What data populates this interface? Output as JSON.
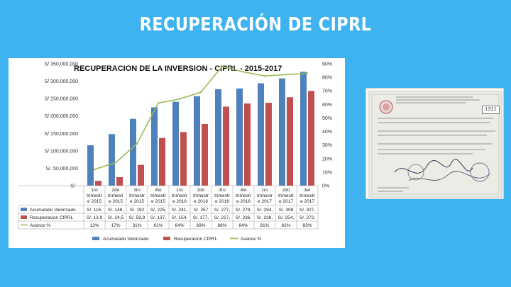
{
  "slide": {
    "title": "RECUPERACIÓN DE CIPRL"
  },
  "colors": {
    "background": "#3fb2f0",
    "accumulated": "#4f81bd",
    "recovery": "#c0504d",
    "advance": "#9bbb59"
  },
  "chart_data": {
    "type": "bar",
    "title": "RECUPERACION DE LA INVERSION - CIPRL - 2015-2017",
    "categories": [
      [
        "1ro",
        "trimestr",
        "e 2015"
      ],
      [
        "2do",
        "trimestr",
        "e 2015"
      ],
      [
        "3ro",
        "trimestr",
        "e 2015"
      ],
      [
        "4to",
        "trimestr",
        "e 2015"
      ],
      [
        "1ro",
        "trimestr",
        "e 2016"
      ],
      [
        "2do",
        "trimestr",
        "e 2016"
      ],
      [
        "3ro",
        "trimestr",
        "e 2016"
      ],
      [
        "4to",
        "trimestr",
        "e 2016"
      ],
      [
        "1ro",
        "trimestr",
        "e 2017"
      ],
      [
        "2do",
        "trimestr",
        "e 2017"
      ],
      [
        "3er",
        "trimestr",
        "e 2017"
      ]
    ],
    "y_axis": {
      "ticks": [
        "S/ -",
        "S/. 50,000,000",
        "S/ 100,000,000",
        "S/ 150,000,000",
        "S/ 200,000,000",
        "S/ 250,000,000",
        "S/ 300,000,000",
        "S/ 350,000,000"
      ],
      "ylim": [
        0,
        350000000
      ]
    },
    "y2_axis": {
      "ticks": [
        "0%",
        "10%",
        "20%",
        "30%",
        "40%",
        "50%",
        "60%",
        "70%",
        "80%",
        "90%"
      ],
      "ylim": [
        0,
        90
      ]
    },
    "series": [
      {
        "name": "Acumulado Valorizado",
        "axis": "left",
        "values": [
          116000000,
          148000000,
          192000000,
          225000000,
          241000000,
          257000000,
          277000000,
          279000000,
          294000000,
          308000000,
          327000000
        ],
        "labels": [
          "S/. 116,",
          "S/. 148,",
          "S/. 192",
          "S/. 225,",
          "S/. 241,",
          "S/. 257",
          "S/. 277,",
          "S/. 279,",
          "S/. 294,",
          "S/. 308",
          "S/. 327,"
        ]
      },
      {
        "name": "Recuperacion CIPRL",
        "axis": "left",
        "values": [
          13900000,
          24500000,
          59800000,
          137000000,
          154000000,
          177000000,
          227000000,
          236000000,
          238000000,
          254000000,
          272000000
        ],
        "labels": [
          "S/. 13,9",
          "S/. 24,5",
          "S/. 59,8",
          "S/. 137,",
          "S/. 154,",
          "S/. 177,",
          "S/. 227,",
          "S/. 236,",
          "S/. 238,",
          "S/. 254,",
          "S/. 272,"
        ]
      },
      {
        "name": "Avance %",
        "axis": "right",
        "type": "line",
        "values": [
          12,
          17,
          31,
          61,
          64,
          69,
          88,
          84,
          81,
          82,
          83
        ],
        "labels": [
          "12%",
          "17%",
          "31%",
          "61%",
          "64%",
          "69%",
          "88%",
          "84%",
          "81%",
          "82%",
          "83%"
        ]
      }
    ],
    "legend": [
      "Acumulado Valorizado",
      "Recuperacion CIPRL",
      "Avance %"
    ],
    "legend_position": "bottom",
    "grid": false
  },
  "document": {
    "stamp": "1311"
  }
}
